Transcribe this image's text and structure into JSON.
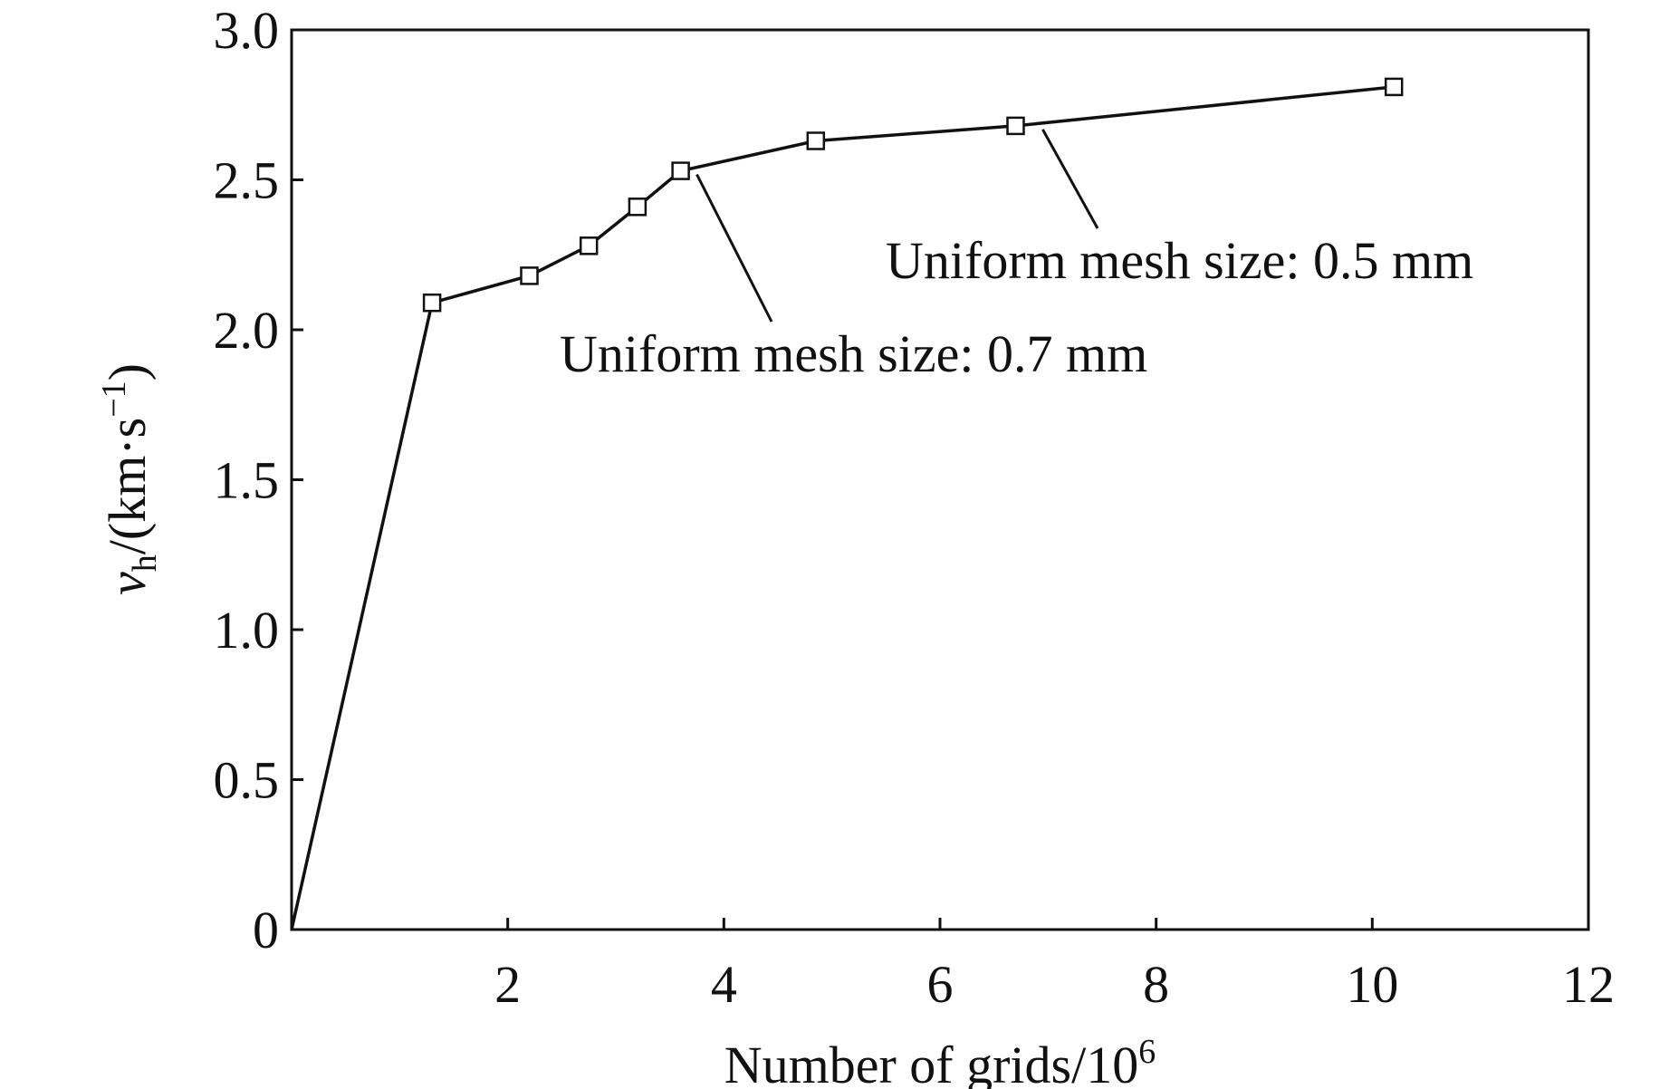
{
  "chart_data": {
    "type": "line",
    "x": [
      0,
      1.3,
      2.2,
      2.75,
      3.2,
      3.6,
      4.85,
      6.7,
      10.2
    ],
    "series": [
      {
        "values": [
          0,
          2.09,
          2.18,
          2.28,
          2.41,
          2.53,
          2.63,
          2.68,
          2.81
        ],
        "markers": [
          false,
          true,
          true,
          true,
          true,
          true,
          true,
          true,
          true
        ],
        "marker": "open-square",
        "color": "#111111"
      }
    ],
    "xlabel": {
      "text": "Number of grids/10",
      "superscript": "6"
    },
    "ylabel": {
      "var": "v",
      "var_sub": "h",
      "unit_prefix": "/(km·s",
      "unit_sup": "−1",
      "unit_suffix": ")"
    },
    "xlim": [
      0,
      12
    ],
    "ylim": [
      0,
      3.0
    ],
    "xticks": [
      2,
      4,
      6,
      8,
      10,
      12
    ],
    "xtick_labels": [
      "2",
      "4",
      "6",
      "8",
      "10",
      "12"
    ],
    "yticks": [
      0,
      0.5,
      1.0,
      1.5,
      2.0,
      2.5,
      3.0
    ],
    "ytick_labels": [
      "0",
      "0.5",
      "1.0",
      "1.5",
      "2.0",
      "2.5",
      "3.0"
    ],
    "grid": false,
    "annotations": [
      {
        "text": "Uniform mesh size: 0.7 mm",
        "point": [
          3.75,
          2.53
        ]
      },
      {
        "text": "Uniform mesh size: 0.5 mm",
        "point": [
          6.95,
          2.68
        ]
      }
    ]
  }
}
